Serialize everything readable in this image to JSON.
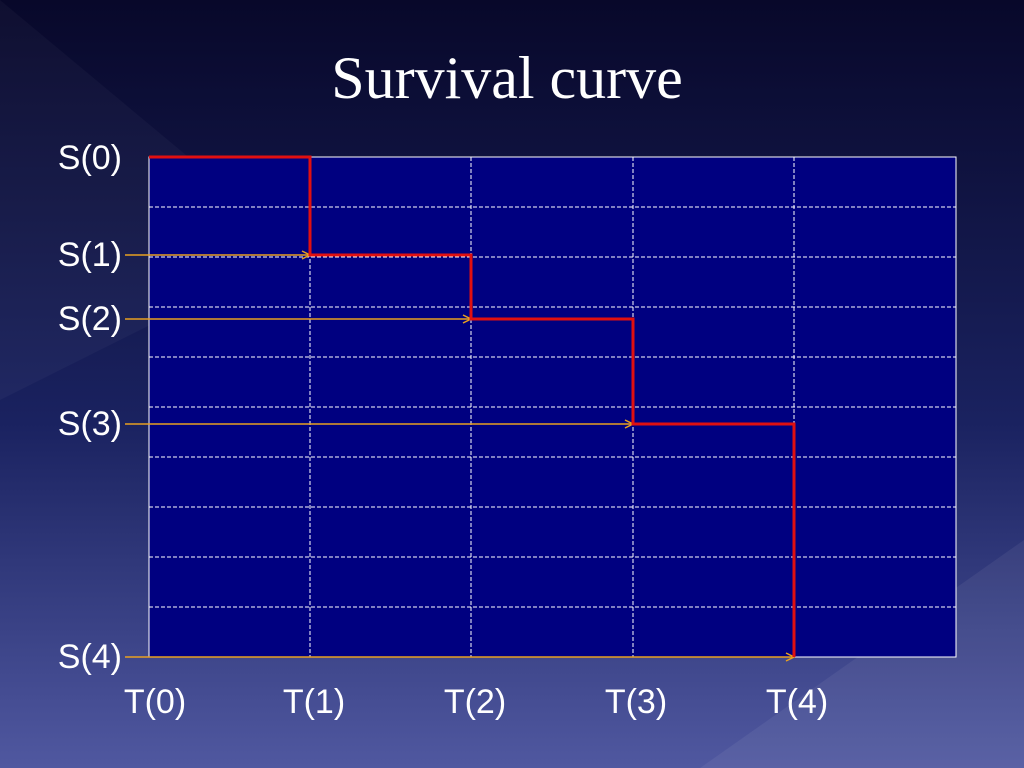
{
  "title": "Survival curve",
  "y_labels": [
    "S(0)",
    "S(1)",
    "S(2)",
    "S(3)",
    "S(4)"
  ],
  "x_labels": [
    "T(0)",
    "T(1)",
    "T(2)",
    "T(3)",
    "T(4)"
  ]
}
